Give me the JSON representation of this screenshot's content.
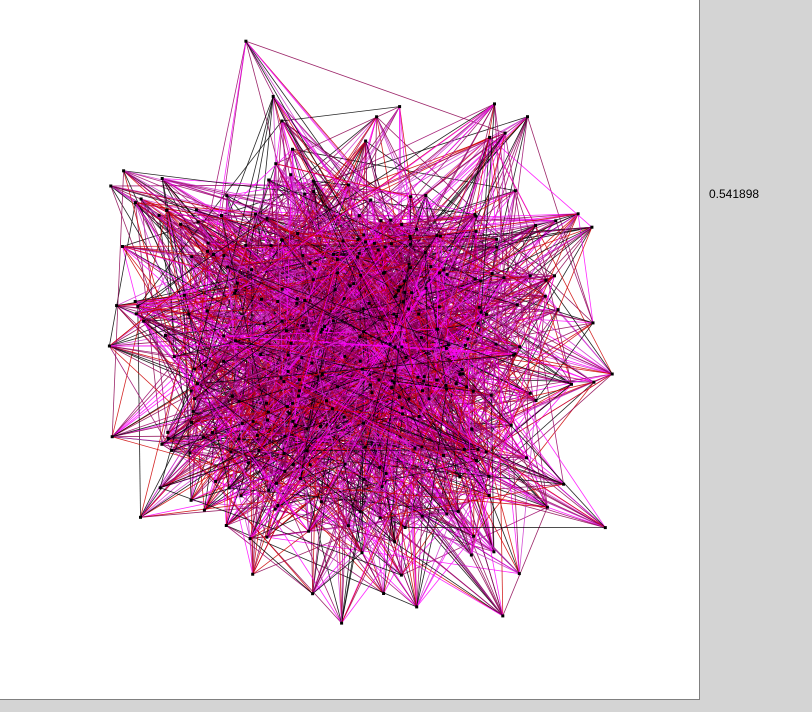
{
  "readout": {
    "value": "0.541898"
  },
  "graph": {
    "node_count": 330,
    "edges_per_node": 8,
    "seed": 7,
    "node_color": "#000000",
    "edge_colors": [
      "#000000",
      "#cc0000",
      "#8b0050",
      "#cc33cc",
      "#ff00ff",
      "#990066"
    ],
    "background": "#ffffff"
  }
}
